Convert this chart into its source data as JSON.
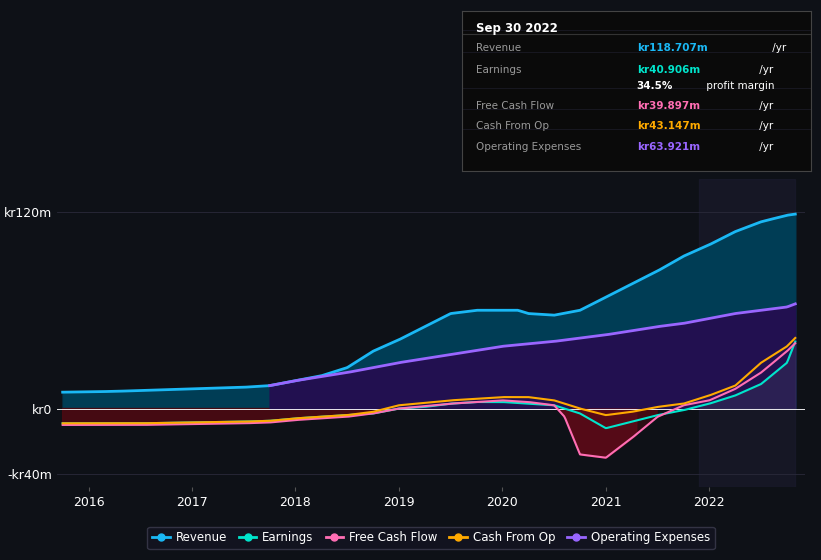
{
  "background_color": "#0e1117",
  "plot_bg_color": "#0e1117",
  "ylim": [
    -48,
    140
  ],
  "xlim": [
    2015.7,
    2022.92
  ],
  "xticks": [
    2016,
    2017,
    2018,
    2019,
    2020,
    2021,
    2022
  ],
  "yticks": [
    -40,
    0,
    120
  ],
  "ytick_labels": [
    "-kr40m",
    "kr0",
    "kr120m"
  ],
  "colors": {
    "revenue": "#1ab8f5",
    "earnings": "#00e5cc",
    "free_cash_flow": "#ff6eb4",
    "cash_from_op": "#ffaa00",
    "operating_expenses": "#9966ff"
  },
  "legend": [
    {
      "label": "Revenue",
      "color": "#1ab8f5"
    },
    {
      "label": "Earnings",
      "color": "#00e5cc"
    },
    {
      "label": "Free Cash Flow",
      "color": "#ff6eb4"
    },
    {
      "label": "Cash From Op",
      "color": "#ffaa00"
    },
    {
      "label": "Operating Expenses",
      "color": "#9966ff"
    }
  ],
  "tooltip": {
    "date": "Sep 30 2022",
    "rows": [
      {
        "label": "Revenue",
        "value": "kr118.707m",
        "suffix": "/yr",
        "color": "#1ab8f5"
      },
      {
        "label": "Earnings",
        "value": "kr40.906m",
        "suffix": "/yr",
        "color": "#00e5cc"
      },
      {
        "label": "",
        "value": "34.5%",
        "suffix": "profit margin",
        "color": "white"
      },
      {
        "label": "Free Cash Flow",
        "value": "kr39.897m",
        "suffix": "/yr",
        "color": "#ff6eb4"
      },
      {
        "label": "Cash From Op",
        "value": "kr43.147m",
        "suffix": "/yr",
        "color": "#ffaa00"
      },
      {
        "label": "Operating Expenses",
        "value": "kr63.921m",
        "suffix": "/yr",
        "color": "#9966ff"
      }
    ]
  }
}
